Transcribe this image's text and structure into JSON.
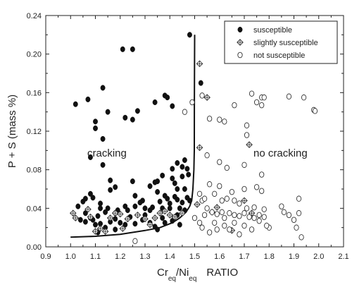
{
  "chart_data": {
    "type": "scatter",
    "xlim": [
      0.9,
      2.1
    ],
    "ylim": [
      0.0,
      0.24
    ],
    "xticks": [
      "0.9",
      "1.0",
      "1.1",
      "1.2",
      "1.3",
      "1.4",
      "1.5",
      "1.6",
      "1.7",
      "1.8",
      "1.9",
      "2.0",
      "2.1"
    ],
    "yticks": [
      "0.00",
      "0.04",
      "0.08",
      "0.12",
      "0.16",
      "0.20",
      "0.24"
    ],
    "x_label": {
      "main1": "Cr",
      "sub1": "eq",
      "main2": "/Ni",
      "sub2": "eq",
      "tail": "RATIO"
    },
    "y_label": "P + S (mass %)",
    "annotations": [
      "cracking",
      "no cracking"
    ],
    "legend_position": "top-right",
    "legend": [
      {
        "name": "susceptible",
        "marker": "filled-circle"
      },
      {
        "name": "slightly susceptible",
        "marker": "crossed-diamond"
      },
      {
        "name": "not susceptible",
        "marker": "open-circle"
      }
    ],
    "boundary_curve": [
      [
        1.0,
        0.01
      ],
      [
        1.1,
        0.011
      ],
      [
        1.2,
        0.013
      ],
      [
        1.3,
        0.017
      ],
      [
        1.36,
        0.02
      ],
      [
        1.41,
        0.025
      ],
      [
        1.44,
        0.03
      ],
      [
        1.465,
        0.036
      ],
      [
        1.48,
        0.042
      ],
      [
        1.488,
        0.048
      ],
      [
        1.493,
        0.06
      ],
      [
        1.497,
        0.08
      ],
      [
        1.4985,
        0.1
      ],
      [
        1.499,
        0.15
      ],
      [
        1.5,
        0.22
      ]
    ],
    "series": [
      {
        "name": "susceptible",
        "marker": "filled-circle",
        "points": [
          [
            1.02,
            0.148
          ],
          [
            1.07,
            0.153
          ],
          [
            1.13,
            0.165
          ],
          [
            1.15,
            0.14
          ],
          [
            1.13,
            0.112
          ],
          [
            1.1,
            0.13
          ],
          [
            1.1,
            0.123
          ],
          [
            1.21,
            0.205
          ],
          [
            1.22,
            0.134
          ],
          [
            1.25,
            0.132
          ],
          [
            1.25,
            0.205
          ],
          [
            1.27,
            0.141
          ],
          [
            1.34,
            0.15
          ],
          [
            1.38,
            0.157
          ],
          [
            1.39,
            0.155
          ],
          [
            1.41,
            0.146
          ],
          [
            1.48,
            0.22
          ],
          [
            1.525,
            0.17
          ],
          [
            1.08,
            0.093
          ],
          [
            1.13,
            0.085
          ],
          [
            1.16,
            0.069
          ],
          [
            1.16,
            0.059
          ],
          [
            1.18,
            0.062
          ],
          [
            1.25,
            0.068
          ],
          [
            1.26,
            0.053
          ],
          [
            1.29,
            0.048
          ],
          [
            1.32,
            0.063
          ],
          [
            1.34,
            0.067
          ],
          [
            1.35,
            0.068
          ],
          [
            1.35,
            0.057
          ],
          [
            1.37,
            0.074
          ],
          [
            1.41,
            0.081
          ],
          [
            1.41,
            0.071
          ],
          [
            1.42,
            0.066
          ],
          [
            1.43,
            0.087
          ],
          [
            1.43,
            0.06
          ],
          [
            1.45,
            0.083
          ],
          [
            1.45,
            0.073
          ],
          [
            1.46,
            0.09
          ],
          [
            1.47,
            0.081
          ],
          [
            1.475,
            0.075
          ],
          [
            1.46,
            0.06
          ],
          [
            1.48,
            0.048
          ],
          [
            1.03,
            0.042
          ],
          [
            1.05,
            0.047
          ],
          [
            1.06,
            0.05
          ],
          [
            1.08,
            0.055
          ],
          [
            1.09,
            0.051
          ],
          [
            1.12,
            0.045
          ],
          [
            1.12,
            0.04
          ],
          [
            1.14,
            0.036
          ],
          [
            1.15,
            0.04
          ],
          [
            1.18,
            0.035
          ],
          [
            1.19,
            0.038
          ],
          [
            1.22,
            0.042
          ],
          [
            1.23,
            0.038
          ],
          [
            1.26,
            0.042
          ],
          [
            1.28,
            0.046
          ],
          [
            1.3,
            0.04
          ],
          [
            1.3,
            0.033
          ],
          [
            1.32,
            0.038
          ],
          [
            1.33,
            0.041
          ],
          [
            1.36,
            0.047
          ],
          [
            1.37,
            0.04
          ],
          [
            1.38,
            0.053
          ],
          [
            1.39,
            0.05
          ],
          [
            1.4,
            0.045
          ],
          [
            1.4,
            0.04
          ],
          [
            1.42,
            0.052
          ],
          [
            1.43,
            0.049
          ],
          [
            1.44,
            0.04
          ],
          [
            1.45,
            0.046
          ],
          [
            1.47,
            0.051
          ],
          [
            1.06,
            0.035
          ],
          [
            1.08,
            0.03
          ],
          [
            1.09,
            0.028
          ],
          [
            1.1,
            0.023
          ],
          [
            1.11,
            0.032
          ],
          [
            1.12,
            0.024
          ],
          [
            1.14,
            0.02
          ],
          [
            1.16,
            0.026
          ],
          [
            1.18,
            0.029
          ],
          [
            1.2,
            0.025
          ],
          [
            1.22,
            0.023
          ],
          [
            1.24,
            0.031
          ],
          [
            1.26,
            0.024
          ],
          [
            1.29,
            0.028
          ],
          [
            1.32,
            0.025
          ],
          [
            1.34,
            0.021
          ],
          [
            1.38,
            0.025
          ],
          [
            1.41,
            0.027
          ],
          [
            1.44,
            0.023
          ],
          [
            1.04,
            0.028
          ],
          [
            1.06,
            0.026
          ],
          [
            1.11,
            0.015
          ],
          [
            1.18,
            0.018
          ],
          [
            1.35,
            0.018
          ],
          [
            1.37,
            0.03
          ],
          [
            1.43,
            0.033
          ],
          [
            1.46,
            0.038
          ]
        ]
      },
      {
        "name": "slightly susceptible",
        "marker": "crossed-diamond",
        "points": [
          [
            1.52,
            0.19
          ],
          [
            1.55,
            0.155
          ],
          [
            1.52,
            0.103
          ],
          [
            1.72,
            0.106
          ],
          [
            1.01,
            0.035
          ],
          [
            1.02,
            0.03
          ],
          [
            1.07,
            0.039
          ],
          [
            1.08,
            0.031
          ],
          [
            1.1,
            0.016
          ],
          [
            1.12,
            0.019
          ],
          [
            1.14,
            0.016
          ],
          [
            1.16,
            0.03
          ],
          [
            1.18,
            0.035
          ],
          [
            1.2,
            0.034
          ],
          [
            1.23,
            0.029
          ],
          [
            1.27,
            0.033
          ],
          [
            1.3,
            0.029
          ],
          [
            1.32,
            0.023
          ],
          [
            1.34,
            0.03
          ],
          [
            1.36,
            0.035
          ],
          [
            1.38,
            0.037
          ],
          [
            1.4,
            0.033
          ],
          [
            1.42,
            0.031
          ],
          [
            1.45,
            0.035
          ],
          [
            1.51,
            0.044
          ],
          [
            1.57,
            0.036
          ],
          [
            1.59,
            0.041
          ],
          [
            1.65,
            0.017
          ],
          [
            1.7,
            0.048
          ],
          [
            1.73,
            0.035
          ],
          [
            1.21,
            0.019
          ]
        ]
      },
      {
        "name": "not susceptible",
        "marker": "open-circle",
        "points": [
          [
            1.26,
            0.006
          ],
          [
            1.46,
            0.14
          ],
          [
            1.49,
            0.15
          ],
          [
            1.53,
            0.157
          ],
          [
            1.56,
            0.133
          ],
          [
            1.6,
            0.132
          ],
          [
            1.62,
            0.13
          ],
          [
            1.66,
            0.147
          ],
          [
            1.71,
            0.126
          ],
          [
            1.73,
            0.159
          ],
          [
            1.75,
            0.15
          ],
          [
            1.77,
            0.155
          ],
          [
            1.78,
            0.155
          ],
          [
            1.77,
            0.147
          ],
          [
            1.88,
            0.156
          ],
          [
            1.94,
            0.155
          ],
          [
            1.98,
            0.142
          ],
          [
            1.985,
            0.141
          ],
          [
            1.71,
            0.116
          ],
          [
            1.55,
            0.095
          ],
          [
            1.6,
            0.088
          ],
          [
            1.63,
            0.082
          ],
          [
            1.7,
            0.085
          ],
          [
            1.77,
            0.075
          ],
          [
            1.56,
            0.065
          ],
          [
            1.6,
            0.063
          ],
          [
            1.65,
            0.057
          ],
          [
            1.7,
            0.06
          ],
          [
            1.75,
            0.062
          ],
          [
            1.77,
            0.058
          ],
          [
            1.52,
            0.055
          ],
          [
            1.53,
            0.048
          ],
          [
            1.54,
            0.05
          ],
          [
            1.58,
            0.055
          ],
          [
            1.61,
            0.048
          ],
          [
            1.63,
            0.05
          ],
          [
            1.66,
            0.048
          ],
          [
            1.68,
            0.045
          ],
          [
            1.71,
            0.04
          ],
          [
            1.74,
            0.041
          ],
          [
            1.78,
            0.039
          ],
          [
            1.85,
            0.042
          ],
          [
            1.92,
            0.05
          ],
          [
            1.55,
            0.04
          ],
          [
            1.57,
            0.036
          ],
          [
            1.59,
            0.034
          ],
          [
            1.61,
            0.036
          ],
          [
            1.62,
            0.03
          ],
          [
            1.64,
            0.035
          ],
          [
            1.66,
            0.033
          ],
          [
            1.68,
            0.032
          ],
          [
            1.7,
            0.035
          ],
          [
            1.72,
            0.031
          ],
          [
            1.74,
            0.03
          ],
          [
            1.76,
            0.027
          ],
          [
            1.78,
            0.031
          ],
          [
            1.8,
            0.02
          ],
          [
            1.5,
            0.03
          ],
          [
            1.52,
            0.025
          ],
          [
            1.53,
            0.02
          ],
          [
            1.54,
            0.033
          ],
          [
            1.56,
            0.015
          ],
          [
            1.58,
            0.025
          ],
          [
            1.59,
            0.018
          ],
          [
            1.62,
            0.022
          ],
          [
            1.64,
            0.018
          ],
          [
            1.66,
            0.025
          ],
          [
            1.68,
            0.013
          ],
          [
            1.7,
            0.022
          ],
          [
            1.73,
            0.018
          ],
          [
            1.76,
            0.033
          ],
          [
            1.79,
            0.022
          ],
          [
            1.86,
            0.036
          ],
          [
            1.88,
            0.033
          ],
          [
            1.9,
            0.028
          ],
          [
            1.91,
            0.02
          ],
          [
            1.93,
            0.01
          ],
          [
            1.92,
            0.035
          ]
        ]
      }
    ]
  }
}
